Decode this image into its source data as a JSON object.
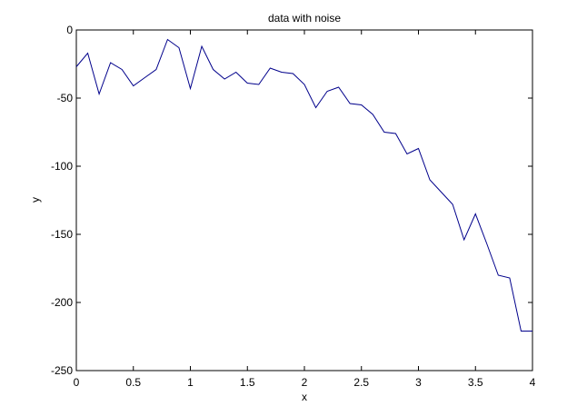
{
  "chart_data": {
    "type": "line",
    "title": "data with noise",
    "xlabel": "x",
    "ylabel": "y",
    "xlim": [
      0,
      4
    ],
    "ylim": [
      -250,
      0
    ],
    "grid": false,
    "x_ticks": [
      0,
      0.5,
      1,
      1.5,
      2,
      2.5,
      3,
      3.5,
      4
    ],
    "x_tick_labels": [
      "0",
      "0.5",
      "1",
      "1.5",
      "2",
      "2.5",
      "3",
      "3.5",
      "4"
    ],
    "y_ticks": [
      0,
      -50,
      -100,
      -150,
      -200,
      -250
    ],
    "y_tick_labels": [
      "0",
      "-50",
      "-100",
      "-150",
      "-200",
      "-250"
    ],
    "series": [
      {
        "color": "#00008b",
        "x": [
          0,
          0.1,
          0.2,
          0.3,
          0.4,
          0.5,
          0.6,
          0.7,
          0.8,
          0.9,
          1.0,
          1.1,
          1.2,
          1.3,
          1.4,
          1.5,
          1.6,
          1.7,
          1.8,
          1.9,
          2.0,
          2.1,
          2.2,
          2.3,
          2.4,
          2.5,
          2.6,
          2.7,
          2.8,
          2.9,
          3.0,
          3.1,
          3.2,
          3.3,
          3.4,
          3.5,
          3.6,
          3.7,
          3.8,
          3.9,
          4.0
        ],
        "y": [
          -27,
          -17,
          -47,
          -24,
          -29,
          -41,
          -35,
          -29,
          -7,
          -13,
          -43,
          -12,
          -29,
          -36,
          -31,
          -39,
          -40,
          -28,
          -31,
          -32,
          -40,
          -57,
          -45,
          -42,
          -54,
          -55,
          -62,
          -75,
          -76,
          -91,
          -87,
          -110,
          -119,
          -128,
          -154,
          -135,
          -157,
          -180,
          -182,
          -221,
          -221
        ]
      }
    ]
  }
}
